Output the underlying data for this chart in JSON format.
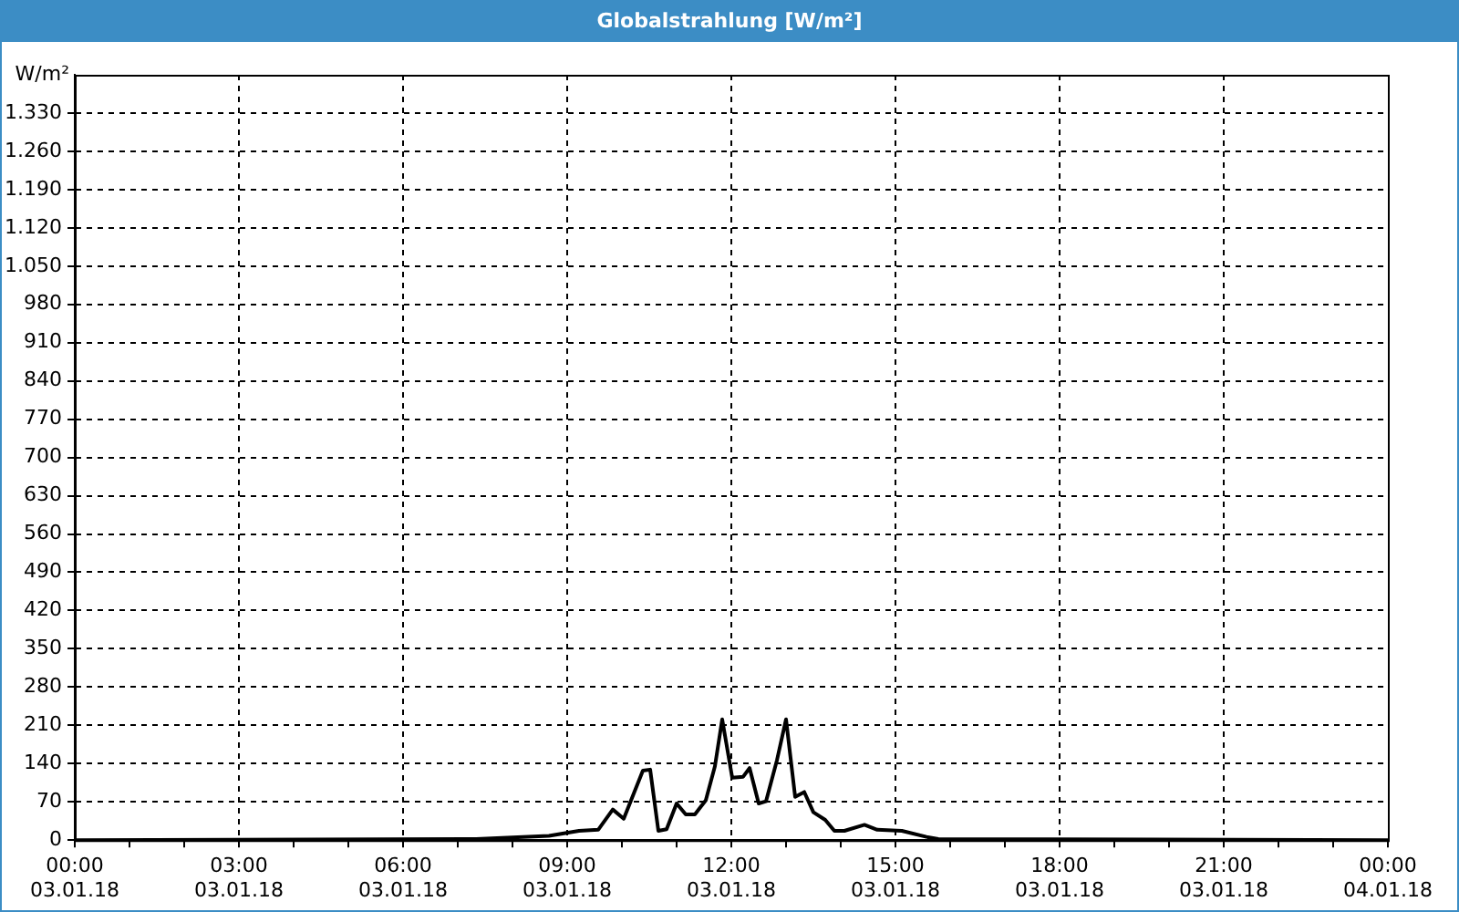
{
  "chart_data": {
    "type": "line",
    "title": "Globalstrahlung [W/m²]",
    "ylabel": "W/m²",
    "x": [
      "--01-03T00:00",
      "--01-03T07:20",
      "--01-03T08:40",
      "--01-03T09:13",
      "--01-03T09:34",
      "--01-03T09:50",
      "--01-03T10:02",
      "--01-03T10:23",
      "--01-03T10:31",
      "--01-03T10:40",
      "--01-03T10:49",
      "--01-03T11:00",
      "--01-03T11:10",
      "--01-03T11:20",
      "--01-03T11:32",
      "--01-03T11:42",
      "--01-03T11:50",
      "--01-03T12:01",
      "--01-03T12:13",
      "--01-03T12:20",
      "--01-03T12:30",
      "--01-03T12:38",
      "--01-03T12:50",
      "--01-03T13:00",
      "--01-03T13:10",
      "--01-03T13:20",
      "--01-03T13:30",
      "--01-03T13:43",
      "--01-03T13:53",
      "--01-03T14:04",
      "--01-03T14:26",
      "--01-03T14:40",
      "--01-03T15:07",
      "--01-03T15:34",
      "--01-03T15:47",
      "--01-04T00:00"
    ],
    "series": [
      {
        "color": "#000000",
        "values": [
          0,
          2,
          8,
          17,
          19,
          56,
          39,
          127,
          129,
          17,
          20,
          67,
          47,
          47,
          73,
          135,
          221,
          114,
          116,
          132,
          67,
          71,
          146,
          221,
          79,
          88,
          51,
          37,
          17,
          17,
          28,
          19,
          17,
          6,
          2,
          0
        ]
      }
    ],
    "xlim": [
      "--01-03T00:00",
      "--01-04T00:00"
    ],
    "xticks": [
      {
        "value": "--01-03T00:00",
        "label": "00:00 03.01.18"
      },
      {
        "value": "--01-03T01:00",
        "label": null
      },
      {
        "value": "--01-03T02:00",
        "label": null
      },
      {
        "value": "--01-03T03:00",
        "label": "03:00 03.01.18"
      },
      {
        "value": "--01-03T04:00",
        "label": null
      },
      {
        "value": "--01-03T05:00",
        "label": null
      },
      {
        "value": "--01-03T06:00",
        "label": "06:00 03.01.18"
      },
      {
        "value": "--01-03T07:00",
        "label": null
      },
      {
        "value": "--01-03T08:00",
        "label": null
      },
      {
        "value": "--01-03T09:00",
        "label": "09:00 03.01.18"
      },
      {
        "value": "--01-03T10:00",
        "label": null
      },
      {
        "value": "--01-03T11:00",
        "label": null
      },
      {
        "value": "--01-03T12:00",
        "label": "12:00 03.01.18"
      },
      {
        "value": "--01-03T13:00",
        "label": null
      },
      {
        "value": "--01-03T14:00",
        "label": null
      },
      {
        "value": "--01-03T15:00",
        "label": "15:00 03.01.18"
      },
      {
        "value": "--01-03T16:00",
        "label": null
      },
      {
        "value": "--01-03T17:00",
        "label": null
      },
      {
        "value": "--01-03T18:00",
        "label": "18:00 03.01.18"
      },
      {
        "value": "--01-03T19:00",
        "label": null
      },
      {
        "value": "--01-03T20:00",
        "label": null
      },
      {
        "value": "--01-03T21:00",
        "label": "21:00 03.01.18"
      },
      {
        "value": "--01-03T22:00",
        "label": null
      },
      {
        "value": "--01-03T23:00",
        "label": null
      },
      {
        "value": "--01-04T00:00",
        "label": "00:00 04.01.18"
      }
    ],
    "ylim": [
      0,
      1400
    ],
    "yticks": [
      0,
      70,
      140,
      210,
      280,
      350,
      420,
      490,
      560,
      630,
      700,
      770,
      840,
      910,
      980,
      {
        "value": 1050,
        "label": "1.050"
      },
      {
        "value": 1120,
        "label": "1.120"
      },
      {
        "value": 1190,
        "label": "1.190"
      },
      {
        "value": 1260,
        "label": "1.260"
      },
      {
        "value": 1330,
        "label": "1.330"
      }
    ],
    "grid": true,
    "legend": false,
    "marker": "none",
    "line_style": "solid"
  }
}
